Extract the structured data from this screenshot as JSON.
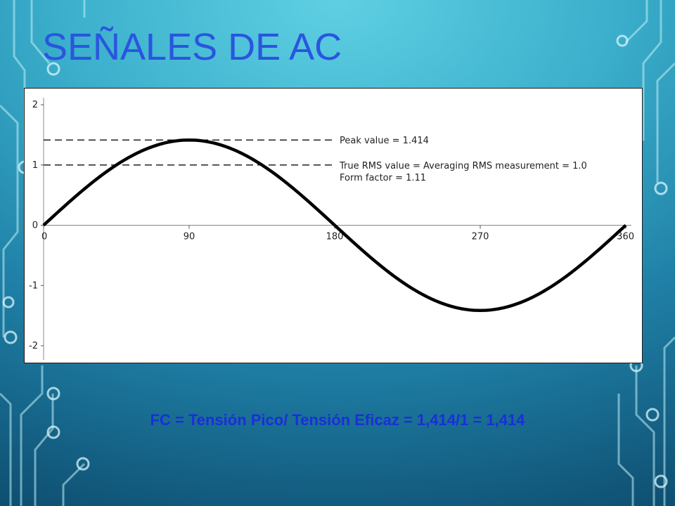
{
  "slide": {
    "title": "SEÑALES DE AC",
    "formula": "FC = Tensión Pico/ Tensión Eficaz = 1,414/1 = 1,414"
  },
  "colors": {
    "title": "#2a55e0",
    "formula": "#1a2fd8",
    "curve": "#000000"
  },
  "chart_data": {
    "type": "line",
    "title": "",
    "xlabel": "",
    "ylabel": "",
    "xlim": [
      0,
      360
    ],
    "ylim": [
      -2,
      2
    ],
    "x_ticks": [
      "0",
      "90",
      "180",
      "270",
      "360"
    ],
    "y_ticks": [
      "2",
      "1",
      "0",
      "-1",
      "-2"
    ],
    "series": [
      {
        "function": "1.414 * sin(x degrees)",
        "x": [
          0,
          15,
          30,
          45,
          60,
          75,
          90,
          105,
          120,
          135,
          150,
          165,
          180,
          195,
          210,
          225,
          240,
          255,
          270,
          285,
          300,
          315,
          330,
          345,
          360
        ],
        "values": [
          0,
          0.366,
          0.707,
          1.0,
          1.225,
          1.366,
          1.414,
          1.366,
          1.225,
          1.0,
          0.707,
          0.366,
          0,
          -0.366,
          -0.707,
          -1.0,
          -1.225,
          -1.366,
          -1.414,
          -1.366,
          -1.225,
          -1.0,
          -0.707,
          -0.366,
          0
        ]
      }
    ],
    "reference_lines": [
      {
        "y": 1.414,
        "style": "dashed",
        "label": "Peak value = 1.414"
      },
      {
        "y": 1.0,
        "style": "dashed",
        "label": "True RMS value = Averaging RMS measurement = 1.0"
      }
    ],
    "annotations": [
      "Form factor = 1.11"
    ],
    "grid": false
  }
}
